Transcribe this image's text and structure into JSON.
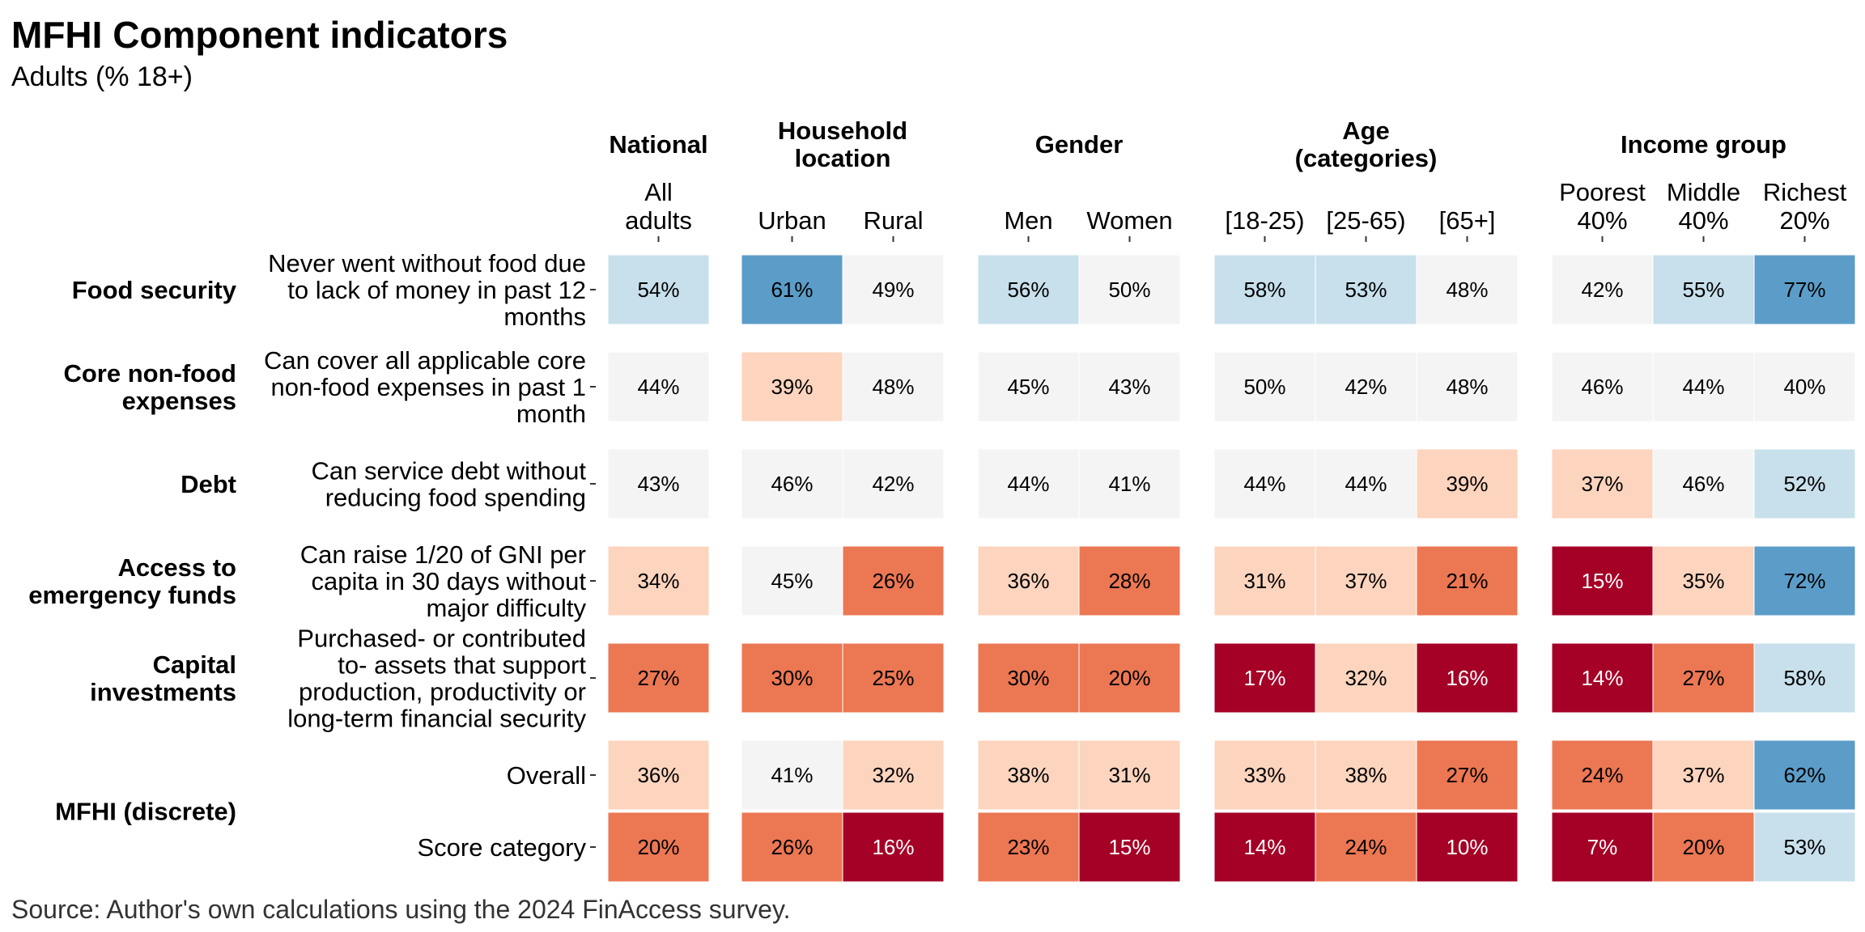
{
  "title": "MFHI Component indicators",
  "subtitle": "Adults (% 18+)",
  "caption": "Source: Author's own calculations using the 2024 FinAccess survey.",
  "colors": {
    "dark_red": "#A50026",
    "orange": "#EC7753",
    "light_peach": "#FDD4BE",
    "neutral": "#F4F4F4",
    "light_blue": "#C8E0EC",
    "mid_blue": "#5B9DC8",
    "text_dark": "#000000",
    "text_light": "#FFFFFF"
  },
  "chart_data": {
    "type": "heatmap",
    "groups": [
      {
        "name": "National",
        "columns": [
          [
            "All",
            "adults"
          ]
        ]
      },
      {
        "name": "Household location",
        "columns": [
          [
            "Urban"
          ],
          [
            "Rural"
          ]
        ]
      },
      {
        "name": "Gender",
        "columns": [
          [
            "Men"
          ],
          [
            "Women"
          ]
        ]
      },
      {
        "name": "Age (categories)",
        "columns": [
          [
            "[18-25)"
          ],
          [
            "[25-65)"
          ],
          [
            "[65+]"
          ]
        ]
      },
      {
        "name": "Income group",
        "columns": [
          [
            "Poorest",
            "40%"
          ],
          [
            "Middle",
            "40%"
          ],
          [
            "Richest",
            "20%"
          ]
        ]
      }
    ],
    "group_header_lines": [
      [
        "National"
      ],
      [
        "Household",
        "location"
      ],
      [
        "Gender"
      ],
      [
        "Age",
        "(categories)"
      ],
      [
        "Income group"
      ]
    ],
    "categories": [
      {
        "label": [
          "Food security"
        ],
        "rows": [
          0
        ]
      },
      {
        "label": [
          "Core non-food",
          "expenses"
        ],
        "rows": [
          1
        ]
      },
      {
        "label": [
          "Debt"
        ],
        "rows": [
          2
        ]
      },
      {
        "label": [
          "Access to",
          "emergency funds"
        ],
        "rows": [
          3
        ]
      },
      {
        "label": [
          "Capital",
          "investments"
        ],
        "rows": [
          4
        ]
      },
      {
        "label": [
          "MFHI (discrete)"
        ],
        "rows": [
          5,
          6
        ]
      }
    ],
    "rows": [
      {
        "label": [
          "Never went without food due",
          "to lack of money in past 12",
          "months"
        ],
        "values": [
          54,
          61,
          49,
          56,
          50,
          58,
          53,
          48,
          42,
          55,
          77
        ],
        "levels": [
          4,
          5,
          3,
          4,
          3,
          4,
          4,
          3,
          3,
          4,
          5
        ]
      },
      {
        "label": [
          "Can cover all applicable core",
          "non-food expenses in past 1",
          "month"
        ],
        "values": [
          44,
          39,
          48,
          45,
          43,
          50,
          42,
          48,
          46,
          44,
          40
        ],
        "levels": [
          3,
          2,
          3,
          3,
          3,
          3,
          3,
          3,
          3,
          3,
          3
        ]
      },
      {
        "label": [
          "Can service debt without",
          "reducing food spending"
        ],
        "values": [
          43,
          46,
          42,
          44,
          41,
          44,
          44,
          39,
          37,
          46,
          52
        ],
        "levels": [
          3,
          3,
          3,
          3,
          3,
          3,
          3,
          2,
          2,
          3,
          4
        ]
      },
      {
        "label": [
          "Can raise 1/20 of GNI per",
          "capita in 30 days without",
          "major difficulty"
        ],
        "values": [
          34,
          45,
          26,
          36,
          28,
          31,
          37,
          21,
          15,
          35,
          72
        ],
        "levels": [
          2,
          3,
          1,
          2,
          1,
          2,
          2,
          1,
          0,
          2,
          5
        ]
      },
      {
        "label": [
          "Purchased- or contributed",
          "to- assets that support",
          "production, productivity or",
          "long-term financial security"
        ],
        "values": [
          27,
          30,
          25,
          30,
          20,
          17,
          32,
          16,
          14,
          27,
          58
        ],
        "levels": [
          1,
          1,
          1,
          1,
          1,
          0,
          2,
          0,
          0,
          1,
          4
        ]
      },
      {
        "label": [
          "Overall"
        ],
        "values": [
          36,
          41,
          32,
          38,
          31,
          33,
          38,
          27,
          24,
          37,
          62
        ],
        "levels": [
          2,
          3,
          2,
          2,
          2,
          2,
          2,
          1,
          1,
          2,
          5
        ]
      },
      {
        "label": [
          "Score category"
        ],
        "values": [
          20,
          26,
          16,
          23,
          15,
          14,
          24,
          10,
          7,
          20,
          53
        ],
        "levels": [
          1,
          1,
          0,
          1,
          0,
          0,
          1,
          0,
          0,
          1,
          4
        ]
      }
    ],
    "value_suffix": "%",
    "legend": "none",
    "grid": false
  }
}
